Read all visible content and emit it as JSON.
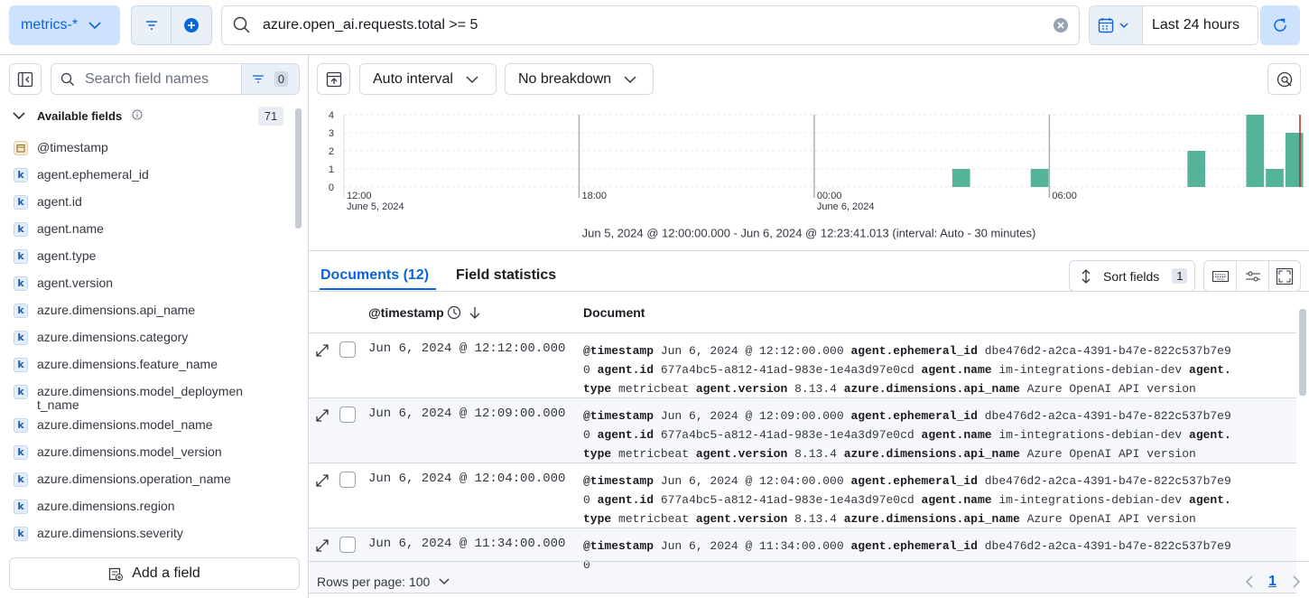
{
  "top_bar": {
    "data_view": "metrics-*",
    "query": "azure.open_ai.requests.total >= 5",
    "time_range": "Last 24 hours"
  },
  "sidebar": {
    "search_placeholder": "Search field names",
    "filter_count": 0,
    "available_fields_label": "Available fields",
    "available_fields_count": 71,
    "fields": [
      {
        "name": "@timestamp",
        "type": "date"
      },
      {
        "name": "agent.ephemeral_id",
        "type": "keyword",
        "token": "k"
      },
      {
        "name": "agent.id",
        "type": "keyword",
        "token": "k"
      },
      {
        "name": "agent.name",
        "type": "keyword",
        "token": "k"
      },
      {
        "name": "agent.type",
        "type": "keyword",
        "token": "k"
      },
      {
        "name": "agent.version",
        "type": "keyword",
        "token": "k"
      },
      {
        "name": "azure.dimensions.api_name",
        "type": "keyword",
        "token": "k"
      },
      {
        "name": "azure.dimensions.category",
        "type": "keyword",
        "token": "k"
      },
      {
        "name": "azure.dimensions.feature_name",
        "type": "keyword",
        "token": "k"
      },
      {
        "name": "azure.dimensions.model_deployment_name",
        "type": "keyword",
        "token": "k"
      },
      {
        "name": "azure.dimensions.model_name",
        "type": "keyword",
        "token": "k"
      },
      {
        "name": "azure.dimensions.model_version",
        "type": "keyword",
        "token": "k"
      },
      {
        "name": "azure.dimensions.operation_name",
        "type": "keyword",
        "token": "k"
      },
      {
        "name": "azure.dimensions.region",
        "type": "keyword",
        "token": "k"
      },
      {
        "name": "azure.dimensions.severity",
        "type": "keyword",
        "token": "k"
      }
    ],
    "add_field": "Add a field"
  },
  "toolbar": {
    "interval": "Auto interval",
    "breakdown": "No breakdown"
  },
  "chart_data": {
    "type": "bar",
    "caption": "Jun 5, 2024 @ 12:00:00.000 - Jun 6, 2024 @ 12:23:41.013 (interval: Auto - 30 minutes)",
    "x": [
      "2024-06-06T03:30",
      "2024-06-06T05:30",
      "2024-06-06T09:30",
      "2024-06-06T11:00",
      "2024-06-06T11:30",
      "2024-06-06T12:00"
    ],
    "values": [
      1,
      1,
      2,
      4,
      1,
      3
    ],
    "color": "#54b399",
    "xlim": [
      "2024-06-05T12:00:00.000",
      "2024-06-06T12:23:41.013"
    ],
    "ylim": [
      0,
      4
    ],
    "yticks": [
      0,
      1,
      2,
      3,
      4
    ],
    "xticks": [
      {
        "value": "2024-06-05T12:00",
        "label": "12:00",
        "sublabel": "June 5, 2024"
      },
      {
        "value": "2024-06-05T18:00",
        "label": "18:00"
      },
      {
        "value": "2024-06-06T00:00",
        "label": "00:00",
        "sublabel": "June 6, 2024"
      },
      {
        "value": "2024-06-06T06:00",
        "label": "06:00"
      }
    ],
    "grid": true
  },
  "tabs": [
    "Documents (12)",
    "Field statistics"
  ],
  "sort_fields": {
    "label": "Sort fields",
    "count": 1
  },
  "table": {
    "columns": [
      "@timestamp",
      "Document"
    ],
    "rows": [
      {
        "timestamp": "Jun 6, 2024 @ 12:12:00.000",
        "fields": [
          {
            "key": "@timestamp",
            "value": "Jun 6, 2024 @ 12:12:00.000"
          },
          {
            "key": "agent.ephemeral_id",
            "value": "dbe476d2-a2ca-4391-b47e-822c537b7e90"
          },
          {
            "key": "agent.id",
            "value": "677a4bc5-a812-41ad-983e-1e4a3d97e0cd"
          },
          {
            "key": "agent.name",
            "value": "im-integrations-debian-dev"
          },
          {
            "key": "agent.type",
            "value": "metricbeat"
          },
          {
            "key": "agent.version",
            "value": "8.13.4"
          },
          {
            "key": "azure.dimensions.api_name",
            "value": "Azure OpenAI API version"
          }
        ]
      },
      {
        "timestamp": "Jun 6, 2024 @ 12:09:00.000",
        "fields": [
          {
            "key": "@timestamp",
            "value": "Jun 6, 2024 @ 12:09:00.000"
          },
          {
            "key": "agent.ephemeral_id",
            "value": "dbe476d2-a2ca-4391-b47e-822c537b7e90"
          },
          {
            "key": "agent.id",
            "value": "677a4bc5-a812-41ad-983e-1e4a3d97e0cd"
          },
          {
            "key": "agent.name",
            "value": "im-integrations-debian-dev"
          },
          {
            "key": "agent.type",
            "value": "metricbeat"
          },
          {
            "key": "agent.version",
            "value": "8.13.4"
          },
          {
            "key": "azure.dimensions.api_name",
            "value": "Azure OpenAI API version"
          }
        ]
      },
      {
        "timestamp": "Jun 6, 2024 @ 12:04:00.000",
        "fields": [
          {
            "key": "@timestamp",
            "value": "Jun 6, 2024 @ 12:04:00.000"
          },
          {
            "key": "agent.ephemeral_id",
            "value": "dbe476d2-a2ca-4391-b47e-822c537b7e90"
          },
          {
            "key": "agent.id",
            "value": "677a4bc5-a812-41ad-983e-1e4a3d97e0cd"
          },
          {
            "key": "agent.name",
            "value": "im-integrations-debian-dev"
          },
          {
            "key": "agent.type",
            "value": "metricbeat"
          },
          {
            "key": "agent.version",
            "value": "8.13.4"
          },
          {
            "key": "azure.dimensions.api_name",
            "value": "Azure OpenAI API version"
          }
        ]
      },
      {
        "timestamp": "Jun 6, 2024 @ 11:34:00.000",
        "fields": [
          {
            "key": "@timestamp",
            "value": "Jun 6, 2024 @ 11:34:00.000"
          },
          {
            "key": "agent.ephemeral_id",
            "value": "dbe476d2-a2ca-4391-b47e-822c537b7e90"
          }
        ]
      }
    ]
  },
  "footer": {
    "rows_per_page": "Rows per page: 100",
    "page": 1
  }
}
